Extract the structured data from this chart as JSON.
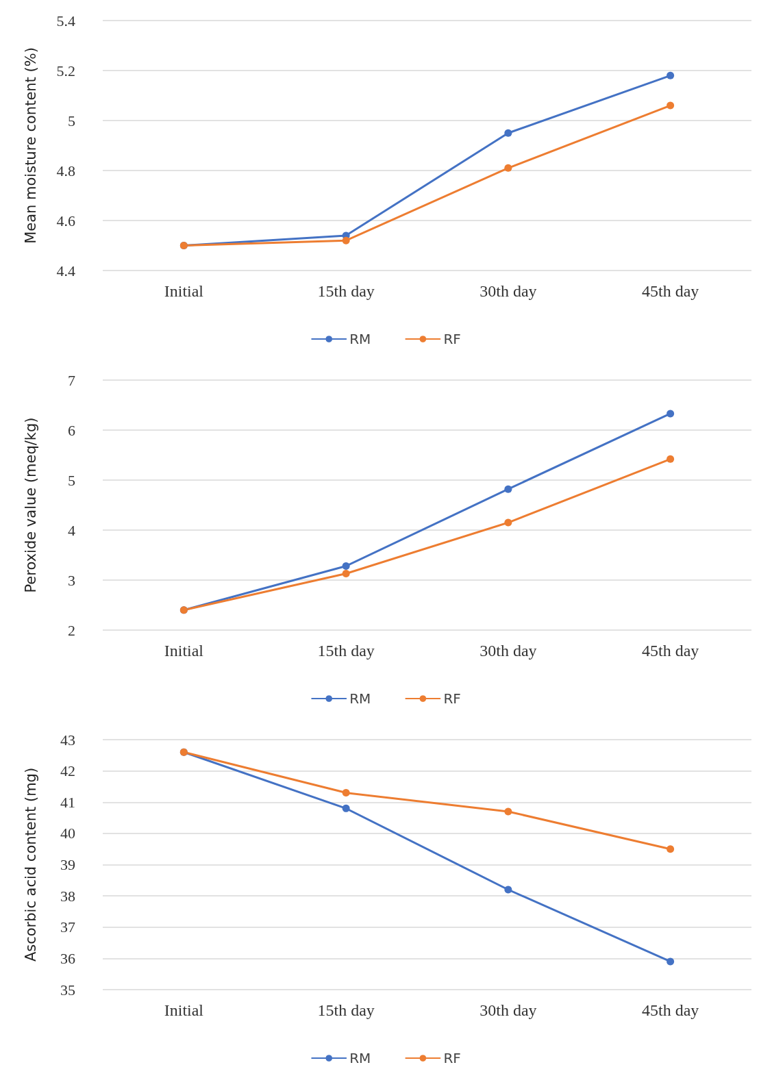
{
  "chart_data": [
    {
      "type": "line",
      "ylabel": "Mean moisture content (%)",
      "categories": [
        "Initial",
        "15th day",
        "30th day",
        "45th day"
      ],
      "ylim": [
        4.4,
        5.4
      ],
      "yticks": [
        4.4,
        4.6,
        4.8,
        5,
        5.2,
        5.4
      ],
      "grid": "y",
      "legend": "bottom",
      "marker": "circle",
      "line_style": "solid",
      "series": [
        {
          "name": "RM",
          "color": "#4472c4",
          "values": [
            4.5,
            4.54,
            4.95,
            5.18
          ]
        },
        {
          "name": "RF",
          "color": "#ed7d31",
          "values": [
            4.5,
            4.52,
            4.81,
            5.06
          ]
        }
      ]
    },
    {
      "type": "line",
      "ylabel": "Peroxide value (meq/kg)",
      "categories": [
        "Initial",
        "15th day",
        "30th day",
        "45th day"
      ],
      "ylim": [
        2,
        7
      ],
      "yticks": [
        2,
        3,
        4,
        5,
        6,
        7
      ],
      "grid": "y",
      "legend": "bottom",
      "marker": "circle",
      "line_style": "solid",
      "series": [
        {
          "name": "RM",
          "color": "#4472c4",
          "values": [
            2.4,
            3.28,
            4.82,
            6.33
          ]
        },
        {
          "name": "RF",
          "color": "#ed7d31",
          "values": [
            2.4,
            3.13,
            4.15,
            5.42
          ]
        }
      ]
    },
    {
      "type": "line",
      "ylabel": "Ascorbic acid content (mg)",
      "categories": [
        "Initial",
        "15th day",
        "30th day",
        "45th day"
      ],
      "ylim": [
        35,
        43
      ],
      "yticks": [
        35,
        36,
        37,
        38,
        39,
        40,
        41,
        42,
        43
      ],
      "grid": "y",
      "legend": "bottom",
      "marker": "circle",
      "line_style": "solid",
      "series": [
        {
          "name": "RM",
          "color": "#4472c4",
          "values": [
            42.6,
            40.8,
            38.2,
            35.9
          ]
        },
        {
          "name": "RF",
          "color": "#ed7d31",
          "values": [
            42.6,
            41.3,
            40.7,
            39.5
          ]
        }
      ]
    }
  ]
}
